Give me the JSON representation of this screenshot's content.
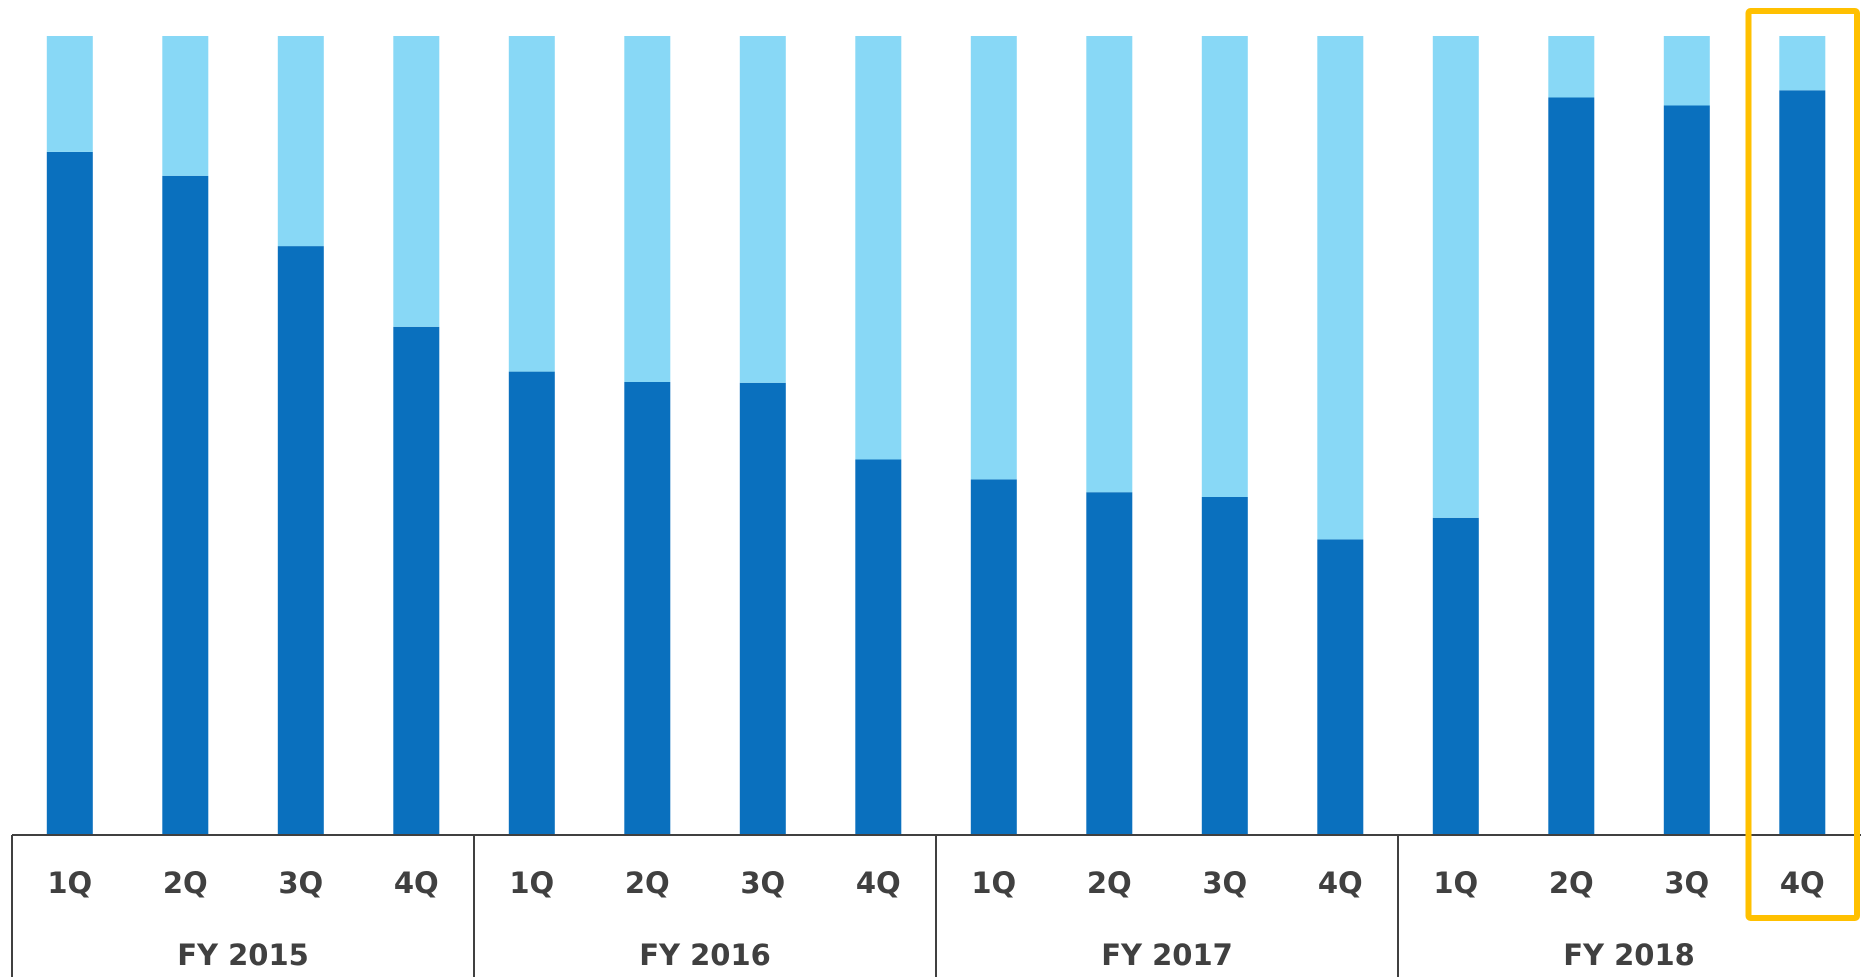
{
  "chart_data": {
    "type": "bar",
    "stacked": true,
    "normalized": true,
    "title": "",
    "xlabel": "",
    "ylabel": "",
    "ylim": [
      0,
      1
    ],
    "grid": false,
    "legend": "none",
    "quarters": [
      "1Q",
      "2Q",
      "3Q",
      "4Q",
      "1Q",
      "2Q",
      "3Q",
      "4Q",
      "1Q",
      "2Q",
      "3Q",
      "4Q",
      "1Q",
      "2Q",
      "3Q",
      "4Q"
    ],
    "fiscal_years": [
      {
        "label": "FY 2015",
        "span": 4
      },
      {
        "label": "FY 2016",
        "span": 4
      },
      {
        "label": "FY 2017",
        "span": 4
      },
      {
        "label": "FY 2018",
        "span": 4
      }
    ],
    "series": [
      {
        "color": "#0a70be",
        "values": [
          0.855,
          0.825,
          0.737,
          0.636,
          0.58,
          0.567,
          0.566,
          0.47,
          0.445,
          0.429,
          0.423,
          0.37,
          0.397,
          0.923,
          0.913,
          0.932
        ]
      },
      {
        "color": "#88d8f6",
        "values": [
          0.145,
          0.175,
          0.263,
          0.364,
          0.42,
          0.433,
          0.434,
          0.53,
          0.555,
          0.571,
          0.577,
          0.63,
          0.603,
          0.077,
          0.087,
          0.068
        ]
      }
    ],
    "highlight_index": 15,
    "highlight_color": "#ffc000"
  }
}
